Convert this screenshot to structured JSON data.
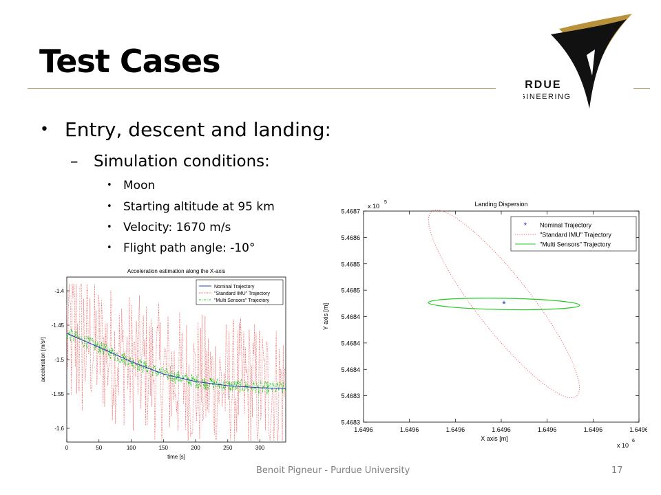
{
  "slide": {
    "title": "Test Cases",
    "bullet_l1": "Entry, descent and landing:",
    "bullet_l2": "Simulation conditions:",
    "bullets_l3": [
      "Moon",
      "Starting altitude at 95 km",
      "Velocity: 1670 m/s",
      "Flight path angle: -10°"
    ],
    "footer": "Benoit Pigneur - Purdue University",
    "page_number": "17"
  },
  "logo": {
    "line1": "PURDUE",
    "line2": "ENGINEERING",
    "colors": {
      "black": "#111111",
      "gold": "#b8913a"
    }
  },
  "chart_data": [
    {
      "type": "line",
      "title": "Acceleration estimation along the X-axis",
      "xlabel": "time [s]",
      "ylabel": "acceleration [m/s²]",
      "xlim": [
        0,
        340
      ],
      "ylim": [
        -1.62,
        -1.38
      ],
      "xticks": [
        0,
        50,
        100,
        150,
        200,
        250,
        300
      ],
      "yticks": [
        -1.4,
        -1.45,
        -1.5,
        -1.55,
        -1.6
      ],
      "legend_position": "top-right",
      "series": [
        {
          "name": "Nominal Trajectory",
          "color": "#1f3fbf",
          "style": "solid",
          "x": [
            0,
            50,
            100,
            150,
            200,
            250,
            300,
            340
          ],
          "y": [
            -1.462,
            -1.482,
            -1.503,
            -1.521,
            -1.532,
            -1.538,
            -1.541,
            -1.542
          ]
        },
        {
          "name": "\"Standard IMU\" Trajectory",
          "color": "#f06060",
          "style": "dotted",
          "x": [
            0,
            340
          ],
          "y": [
            -1.46,
            -1.54
          ],
          "noise_amplitude": 0.12
        },
        {
          "name": "\"Multi Sensors\" Trajectory",
          "color": "#22cc22",
          "style": "dashdot",
          "x": [
            0,
            340
          ],
          "y": [
            -1.462,
            -1.542
          ],
          "noise_amplitude": 0.01
        }
      ]
    },
    {
      "type": "scatter",
      "title": "Landing Dispersion",
      "xlabel": "X axis [m]",
      "ylabel": "Y axis [m]",
      "x_multiplier": "x 10",
      "x_multiplier_exp": "6",
      "y_multiplier": "x 10",
      "y_multiplier_exp": "5",
      "xticks": [
        "1.6496",
        "1.6496",
        "1.6496",
        "1.6496",
        "1.6496",
        "1.6496",
        "1.6496"
      ],
      "yticks": [
        "5.4687",
        "5.4686",
        "5.4685",
        "5.4685",
        "5.4684",
        "5.4684",
        "5.4684",
        "5.4683",
        "5.4683"
      ],
      "legend_position": "top-right",
      "series": [
        {
          "name": "Nominal Trajectory",
          "color": "#1f3fbf",
          "marker": "*",
          "points": [
            {
              "x": 0.51,
              "y": 0.44
            }
          ]
        },
        {
          "name": "\"Standard IMU\" Trajectory",
          "color": "#f06060",
          "style": "dotted",
          "ellipse": {
            "cx": 0.51,
            "cy": 0.44,
            "semi_major": 0.52,
            "semi_minor": 0.12,
            "angle_deg": -52
          }
        },
        {
          "name": "\"Multi Sensors\" Trajectory",
          "color": "#22cc22",
          "style": "solid",
          "ellipse": {
            "cx": 0.51,
            "cy": 0.44,
            "semi_major": 0.5,
            "semi_minor": 0.049,
            "angle_deg": -1
          }
        }
      ]
    }
  ]
}
